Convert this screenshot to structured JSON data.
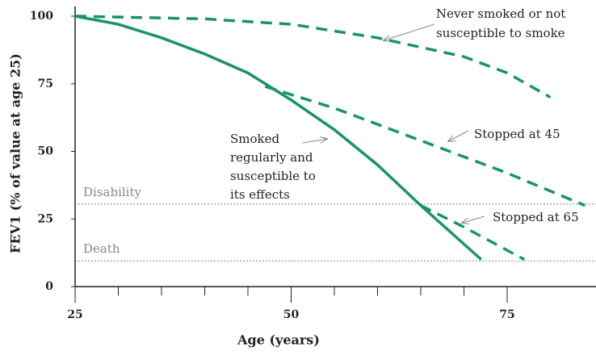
{
  "chart_data": {
    "type": "line",
    "xlabel": "Age (years)",
    "ylabel": "FEV1 (% of value at age 25)",
    "xlim": [
      25,
      85
    ],
    "ylim": [
      0,
      100
    ],
    "xticks": [
      25,
      50,
      75
    ],
    "xminorticks": [
      30,
      35,
      40,
      45,
      55,
      60,
      65,
      70
    ],
    "yticks": [
      0,
      25,
      50,
      75,
      100
    ],
    "series": [
      {
        "color": "#1b9463",
        "dash": true,
        "x": [
          25,
          40,
          50,
          60,
          70,
          75,
          80
        ],
        "values": [
          100,
          99,
          97,
          92,
          85,
          79,
          70
        ]
      },
      {
        "color": "#1b9463",
        "dash": false,
        "x": [
          25,
          30,
          35,
          40,
          45,
          50,
          55,
          60,
          65,
          72
        ],
        "values": [
          100,
          97,
          92,
          86,
          79,
          69,
          58,
          45,
          30,
          10
        ]
      },
      {
        "color": "#1b9463",
        "dash": true,
        "x": [
          47,
          55,
          65,
          75,
          84
        ],
        "values": [
          74,
          66,
          54,
          42,
          30
        ]
      },
      {
        "color": "#1b9463",
        "dash": true,
        "x": [
          65,
          70,
          77
        ],
        "values": [
          30,
          22,
          10
        ]
      }
    ],
    "thresholds": [
      {
        "label": "Disability",
        "value": 30.5
      },
      {
        "label": "Death",
        "value": 9.5
      }
    ],
    "annotations": [
      {
        "lines": [
          "Never smoked or not",
          "susceptible to smoke"
        ]
      },
      {
        "lines": [
          "Smoked",
          "regularly and",
          "susceptible to",
          "its effects"
        ]
      },
      {
        "lines": [
          "Stopped at 45"
        ]
      },
      {
        "lines": [
          "Stopped at 65"
        ]
      }
    ]
  }
}
